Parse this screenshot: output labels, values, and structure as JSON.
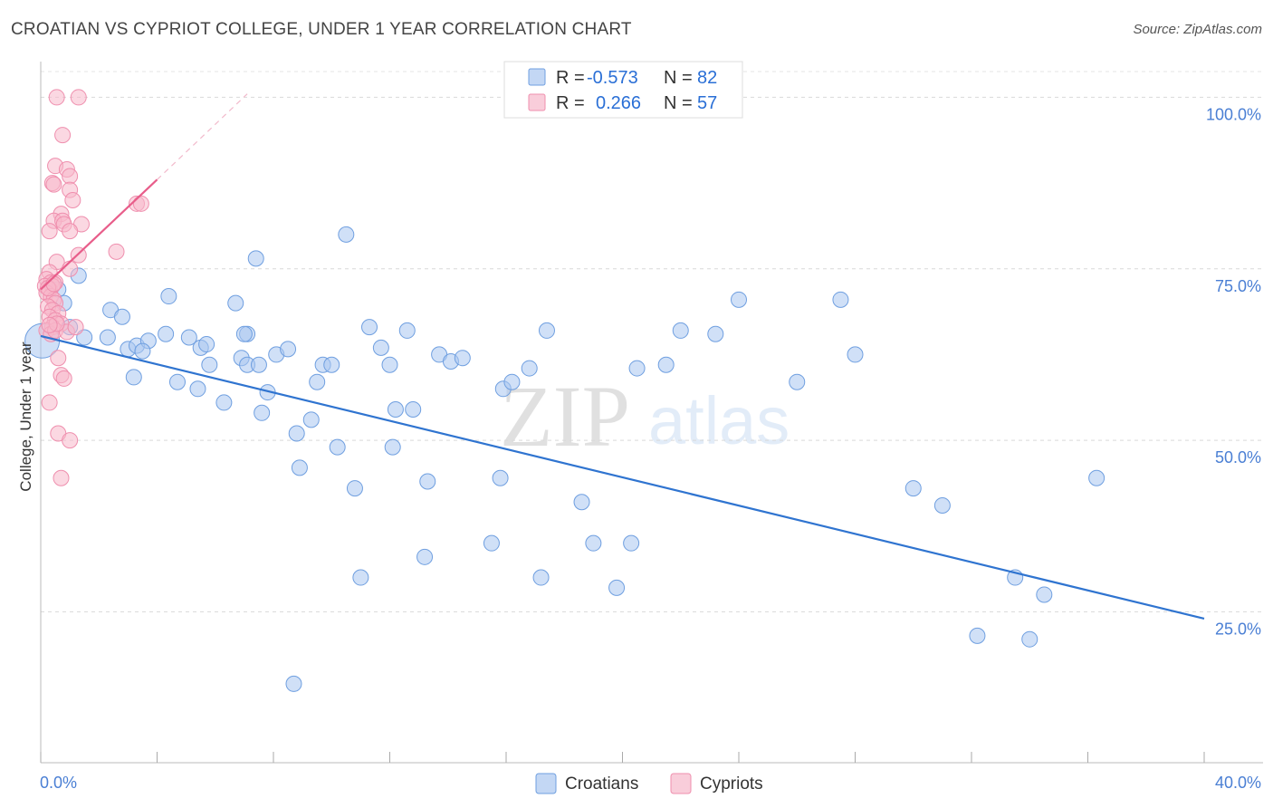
{
  "title": "CROATIAN VS CYPRIOT COLLEGE, UNDER 1 YEAR CORRELATION CHART",
  "source": "Source: ZipAtlas.com",
  "watermark": {
    "zip": "ZIP",
    "atlas": "atlas"
  },
  "chart_data": {
    "type": "scatter",
    "title": "CROATIAN VS CYPRIOT COLLEGE, UNDER 1 YEAR CORRELATION CHART",
    "xlabel": "",
    "ylabel": "College, Under 1 year",
    "xlim": [
      0,
      40
    ],
    "ylim": [
      3,
      106
    ],
    "x_tick_labels": [
      "0.0%",
      "40.0%"
    ],
    "y_ticks": [
      25,
      50,
      75,
      100
    ],
    "y_tick_labels": [
      "25.0%",
      "50.0%",
      "75.0%",
      "100.0%"
    ],
    "grid": true,
    "stats_legend": [
      {
        "r_label": "R =",
        "r_value": "-0.573",
        "n_label": "N =",
        "n_value": "82"
      },
      {
        "r_label": "R =",
        "r_value": "0.266",
        "n_label": "N =",
        "n_value": "57"
      }
    ],
    "series": [
      {
        "name": "Croatians",
        "color": "#a9c6f0",
        "stroke": "#6f9fe0",
        "line_color": "#2f74d0",
        "trend": {
          "x0": 0,
          "y0": 65.2,
          "x1": 40,
          "y1": 24.0
        },
        "points": [
          [
            0.6,
            72.0
          ],
          [
            1.3,
            74.0
          ],
          [
            0.8,
            70.0
          ],
          [
            1.0,
            66.5
          ],
          [
            1.5,
            65.0
          ],
          [
            2.3,
            65.0
          ],
          [
            2.4,
            69.0
          ],
          [
            2.8,
            68.0
          ],
          [
            3.0,
            63.3
          ],
          [
            3.3,
            63.8
          ],
          [
            3.7,
            64.5
          ],
          [
            3.2,
            59.2
          ],
          [
            3.5,
            63.0
          ],
          [
            4.4,
            71.0
          ],
          [
            4.3,
            65.5
          ],
          [
            5.1,
            65.0
          ],
          [
            5.5,
            63.5
          ],
          [
            5.7,
            64.0
          ],
          [
            4.7,
            58.5
          ],
          [
            5.4,
            57.5
          ],
          [
            5.8,
            61.0
          ],
          [
            6.3,
            55.5
          ],
          [
            6.7,
            70.0
          ],
          [
            6.9,
            62.0
          ],
          [
            7.1,
            61.0
          ],
          [
            7.1,
            65.5
          ],
          [
            7.5,
            61.0
          ],
          [
            7.0,
            65.5
          ],
          [
            7.4,
            76.5
          ],
          [
            7.8,
            57.0
          ],
          [
            8.1,
            62.5
          ],
          [
            7.6,
            54.0
          ],
          [
            8.5,
            63.3
          ],
          [
            8.8,
            51.0
          ],
          [
            8.9,
            46.0
          ],
          [
            9.3,
            53.0
          ],
          [
            9.5,
            58.5
          ],
          [
            9.7,
            61.0
          ],
          [
            10.0,
            61.0
          ],
          [
            10.2,
            49.0
          ],
          [
            10.5,
            80.0
          ],
          [
            10.8,
            43.0
          ],
          [
            11.3,
            66.5
          ],
          [
            11.0,
            30.0
          ],
          [
            11.7,
            63.5
          ],
          [
            12.0,
            61.0
          ],
          [
            12.1,
            49.0
          ],
          [
            12.2,
            54.5
          ],
          [
            12.6,
            66.0
          ],
          [
            12.8,
            54.5
          ],
          [
            13.2,
            33.0
          ],
          [
            13.3,
            44.0
          ],
          [
            13.7,
            62.5
          ],
          [
            14.1,
            61.5
          ],
          [
            14.5,
            62.0
          ],
          [
            15.5,
            35.0
          ],
          [
            15.8,
            44.5
          ],
          [
            15.9,
            57.5
          ],
          [
            16.2,
            58.5
          ],
          [
            16.8,
            60.5
          ],
          [
            17.2,
            30.0
          ],
          [
            17.4,
            66.0
          ],
          [
            18.6,
            41.0
          ],
          [
            19.0,
            35.0
          ],
          [
            19.8,
            28.5
          ],
          [
            20.3,
            35.0
          ],
          [
            20.5,
            60.5
          ],
          [
            21.5,
            61.0
          ],
          [
            22.0,
            66.0
          ],
          [
            23.2,
            65.5
          ],
          [
            24.0,
            70.5
          ],
          [
            26.0,
            58.5
          ],
          [
            27.5,
            70.5
          ],
          [
            28.0,
            62.5
          ],
          [
            30.0,
            43.0
          ],
          [
            31.0,
            40.5
          ],
          [
            32.2,
            21.5
          ],
          [
            33.5,
            30.0
          ],
          [
            34.0,
            21.0
          ],
          [
            34.5,
            27.5
          ],
          [
            36.3,
            44.5
          ],
          [
            8.7,
            14.5
          ]
        ]
      },
      {
        "name": "Cypriots",
        "color": "#f7b8cb",
        "stroke": "#ef8fae",
        "line_color": "#e85d8a",
        "trend": {
          "x0": 0,
          "y0": 72.0,
          "x1": 4.0,
          "y1": 88.0
        },
        "trend_ext": {
          "x0": 4.0,
          "y0": 88.0,
          "x1": 7.1,
          "y1": 100.5
        },
        "points": [
          [
            0.55,
            100.0
          ],
          [
            1.3,
            100.0
          ],
          [
            0.75,
            94.5
          ],
          [
            0.5,
            90.0
          ],
          [
            0.9,
            89.5
          ],
          [
            1.0,
            88.5
          ],
          [
            0.4,
            87.5
          ],
          [
            0.45,
            87.3
          ],
          [
            1.0,
            86.5
          ],
          [
            1.1,
            85.0
          ],
          [
            0.7,
            83.0
          ],
          [
            3.3,
            84.5
          ],
          [
            3.45,
            84.5
          ],
          [
            0.45,
            82.0
          ],
          [
            0.75,
            82.0
          ],
          [
            0.8,
            81.5
          ],
          [
            1.4,
            81.5
          ],
          [
            0.3,
            80.5
          ],
          [
            1.0,
            80.5
          ],
          [
            2.6,
            77.5
          ],
          [
            1.3,
            77.0
          ],
          [
            0.55,
            76.0
          ],
          [
            1.0,
            75.0
          ],
          [
            0.3,
            74.5
          ],
          [
            0.2,
            73.5
          ],
          [
            0.35,
            73.0
          ],
          [
            0.5,
            73.0
          ],
          [
            0.15,
            72.5
          ],
          [
            0.3,
            72.0
          ],
          [
            0.4,
            72.5
          ],
          [
            0.2,
            71.5
          ],
          [
            0.35,
            71.0
          ],
          [
            0.45,
            70.5
          ],
          [
            0.5,
            70.0
          ],
          [
            0.25,
            69.5
          ],
          [
            0.4,
            69.0
          ],
          [
            0.6,
            68.5
          ],
          [
            0.3,
            68.0
          ],
          [
            0.5,
            67.5
          ],
          [
            0.7,
            67.0
          ],
          [
            0.4,
            66.5
          ],
          [
            0.2,
            66.0
          ],
          [
            0.35,
            65.5
          ],
          [
            0.5,
            66.0
          ],
          [
            0.9,
            65.8
          ],
          [
            1.2,
            66.5
          ],
          [
            0.6,
            62.0
          ],
          [
            0.7,
            59.5
          ],
          [
            0.8,
            59.0
          ],
          [
            0.3,
            55.5
          ],
          [
            0.6,
            51.0
          ],
          [
            1.0,
            50.0
          ],
          [
            0.7,
            44.5
          ],
          [
            0.25,
            72.2
          ],
          [
            0.45,
            72.8
          ],
          [
            0.55,
            67.0
          ],
          [
            0.3,
            66.8
          ]
        ]
      }
    ]
  }
}
